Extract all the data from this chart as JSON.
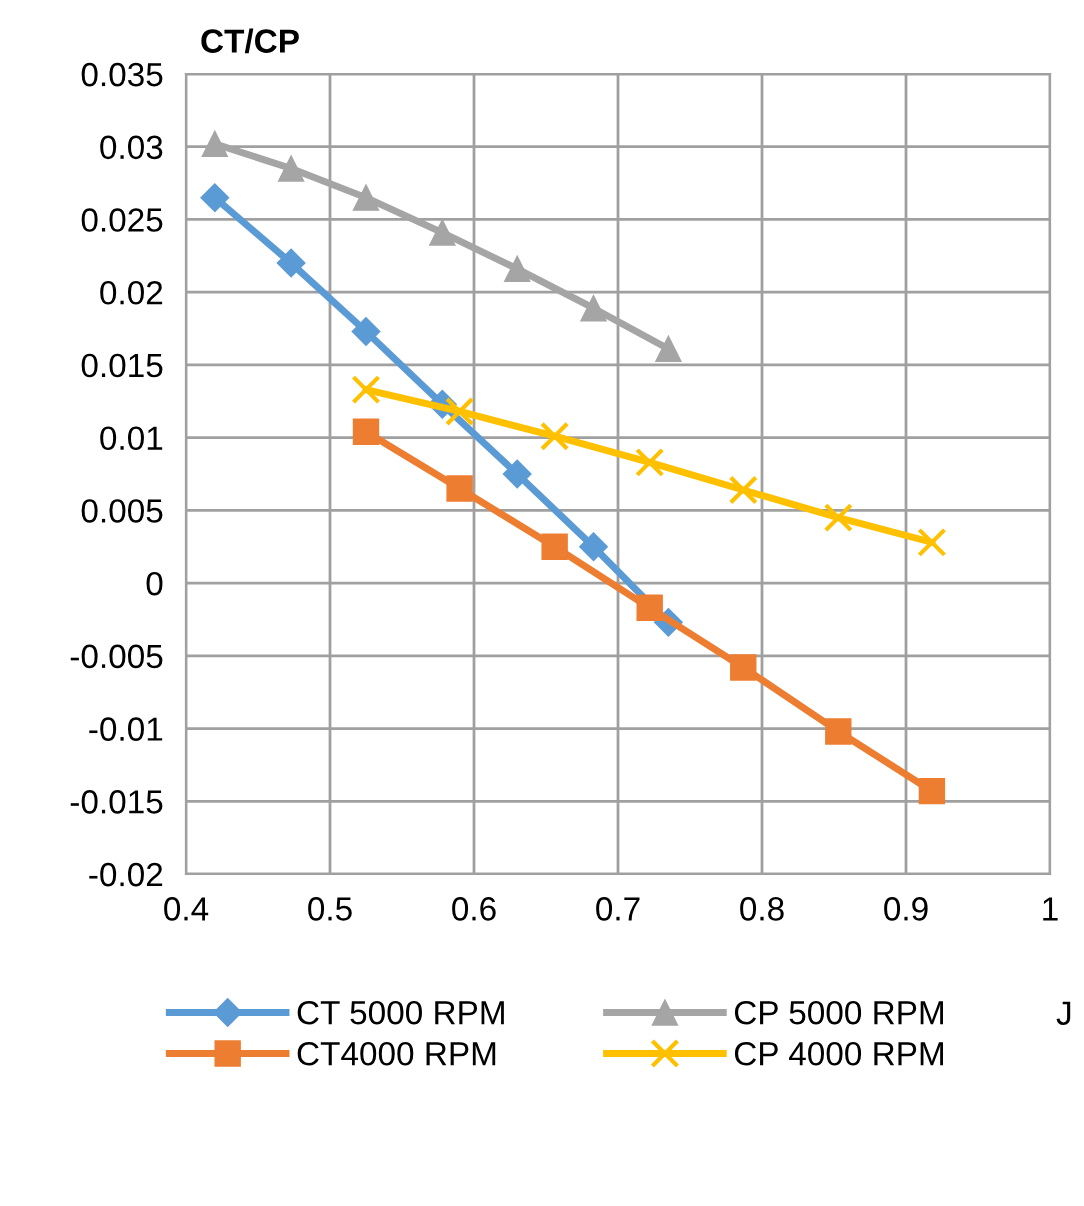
{
  "chart_data": {
    "type": "line",
    "ylabel": "CT/CP",
    "xlabel": "J",
    "xlim": [
      0.4,
      1
    ],
    "xticks": [
      0.4,
      0.5,
      0.6,
      0.7,
      0.8,
      0.9,
      1
    ],
    "ylim": [
      -0.02,
      0.035
    ],
    "yticks": [
      -0.02,
      -0.015,
      -0.01,
      -0.005,
      0,
      0.005,
      0.01,
      0.015,
      0.02,
      0.025,
      0.03,
      0.035
    ],
    "grid": true,
    "legend": "bottom",
    "series": [
      {
        "name": "CT 5000 RPM",
        "color": "#5b9bd5",
        "marker": "diamond",
        "x": [
          0.42,
          0.473,
          0.525,
          0.578,
          0.63,
          0.683,
          0.735
        ],
        "values": [
          0.0265,
          0.022,
          0.0173,
          0.0123,
          0.0075,
          0.0025,
          -0.0027
        ]
      },
      {
        "name": "CT4000 RPM",
        "color": "#ed7d31",
        "marker": "square",
        "x": [
          0.525,
          0.59,
          0.656,
          0.722,
          0.787,
          0.853,
          0.918
        ],
        "values": [
          0.0104,
          0.0065,
          0.0025,
          -0.0017,
          -0.0058,
          -0.0102,
          -0.0143
        ]
      },
      {
        "name": "CP 5000 RPM",
        "color": "#a5a5a5",
        "marker": "triangle",
        "x": [
          0.42,
          0.473,
          0.525,
          0.578,
          0.63,
          0.683,
          0.735
        ],
        "values": [
          0.0302,
          0.0285,
          0.0265,
          0.0241,
          0.0216,
          0.0189,
          0.0161
        ]
      },
      {
        "name": "CP 4000 RPM",
        "color": "#ffc000",
        "marker": "cross",
        "x": [
          0.525,
          0.59,
          0.656,
          0.722,
          0.787,
          0.853,
          0.918
        ],
        "values": [
          0.0133,
          0.0118,
          0.0101,
          0.0083,
          0.0064,
          0.0045,
          0.0028
        ]
      }
    ]
  }
}
